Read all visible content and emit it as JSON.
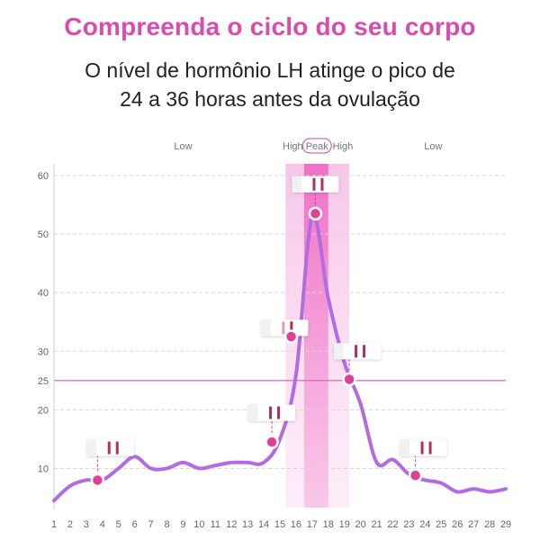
{
  "header": {
    "title": "Compreenda o ciclo do seu corpo",
    "subtitle_line1": "O nível de hormônio LH atinge o pico de",
    "subtitle_line2": "24 a 36 horas antes da ovulação"
  },
  "colors": {
    "title": "#d94bb0",
    "curve": "#b36be0",
    "highband": "#f8c8e8",
    "peakband": "#f080c8",
    "threshold": "#e070c0",
    "marker": "#e0409a",
    "testline": "#b0305a",
    "testline_faint": "#e0a0b8"
  },
  "chart_data": {
    "type": "line",
    "x": [
      1,
      2,
      3,
      4,
      5,
      6,
      7,
      8,
      9,
      10,
      11,
      12,
      13,
      14,
      15,
      16,
      17,
      18,
      19,
      20,
      21,
      22,
      23,
      24,
      25,
      26,
      27,
      28,
      29
    ],
    "y": [
      4.5,
      7,
      8,
      8,
      10,
      12,
      10,
      10,
      11,
      10,
      10.5,
      11,
      11,
      11,
      15,
      26,
      53,
      39,
      28,
      21,
      11,
      11.5,
      9,
      8,
      7.5,
      6,
      6.5,
      6,
      6.5
    ],
    "x_ticks": [
      "1",
      "2",
      "3",
      "4",
      "5",
      "6",
      "7",
      "8",
      "9",
      "10",
      "11",
      "12",
      "13",
      "14",
      "15",
      "16",
      "17",
      "18",
      "19",
      "20",
      "21",
      "22",
      "23",
      "24",
      "25",
      "26",
      "27",
      "28",
      "29"
    ],
    "y_ticks": [
      10,
      20,
      25,
      30,
      40,
      50,
      60
    ],
    "threshold": 25,
    "ylim": [
      3,
      62
    ],
    "xlim": [
      1,
      29
    ],
    "high_band": [
      15.35,
      19.3
    ],
    "peak_band": [
      16.5,
      18
    ],
    "zones": [
      {
        "label": "Low",
        "x": 9
      },
      {
        "label": "High",
        "x": 15.8
      },
      {
        "label": "Peak",
        "x": 17.3
      },
      {
        "label": "High",
        "x": 18.9
      },
      {
        "label": "Low",
        "x": 24.5
      }
    ],
    "markers": [
      {
        "x": 3.7,
        "y": 8,
        "strip_x": 4.5,
        "strip_y": 13.5,
        "faint": false
      },
      {
        "x": 14.5,
        "y": 14.5,
        "strip_x": 14.5,
        "strip_y": 19.5,
        "faint": false
      },
      {
        "x": 15.7,
        "y": 32.5,
        "strip_x": 15.3,
        "strip_y": 34,
        "faint": true
      },
      {
        "x": 17.2,
        "y": 53.5,
        "strip_x": 17.2,
        "strip_y": 58.5,
        "faint": false
      },
      {
        "x": 19.3,
        "y": 25.2,
        "strip_x": 19.8,
        "strip_y": 30,
        "faint": false
      },
      {
        "x": 23.4,
        "y": 8.8,
        "strip_x": 23.9,
        "strip_y": 13.5,
        "faint": false
      }
    ],
    "grid": true,
    "title": "",
    "xlabel": "",
    "ylabel": ""
  }
}
